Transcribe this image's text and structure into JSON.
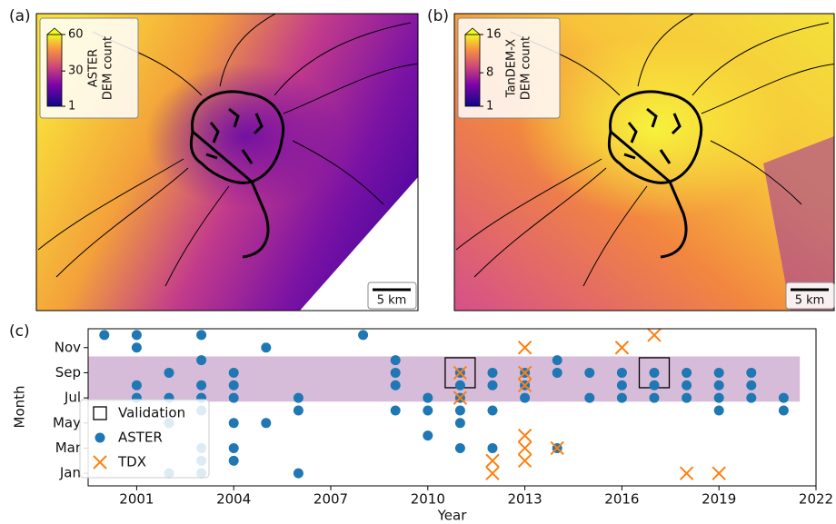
{
  "maps": [
    {
      "label": "(a)",
      "colorbar": {
        "title": [
          "ASTER",
          "DEM count"
        ],
        "lim": [
          1,
          60
        ],
        "ticks": [
          1,
          30,
          60
        ]
      },
      "scale_bar": "5 km"
    },
    {
      "label": "(b)",
      "colorbar": {
        "title": [
          "TanDEM-X",
          "DEM count"
        ],
        "lim": [
          1,
          16
        ],
        "ticks": [
          1,
          8,
          16
        ]
      },
      "scale_bar": "5 km"
    }
  ],
  "chart_data": {
    "type": "scatter",
    "label": "(c)",
    "xlabel": "Year",
    "ylabel": "Month",
    "xlim": [
      1999.5,
      2022
    ],
    "xticks": [
      2001,
      2004,
      2007,
      2010,
      2013,
      2016,
      2019,
      2022
    ],
    "ylim": [
      0,
      12.5
    ],
    "yticks": [
      {
        "value": 1,
        "label": "Jan"
      },
      {
        "value": 3,
        "label": "Mar"
      },
      {
        "value": 5,
        "label": "May"
      },
      {
        "value": 7,
        "label": "Jul"
      },
      {
        "value": 9,
        "label": "Sep"
      },
      {
        "value": 11,
        "label": "Nov"
      }
    ],
    "span": {
      "x": [
        1999.5,
        2021.5
      ],
      "y": [
        6.7,
        10.3
      ],
      "color": "#d7bcd9"
    },
    "legend": "lower left",
    "series": [
      {
        "name": "Validation",
        "marker": "square",
        "color": "#000000",
        "x": [
          2011,
          2017
        ],
        "values": [
          9,
          9
        ]
      },
      {
        "name": "ASTER",
        "marker": "circle",
        "color": "#1f77b4",
        "x": [
          2000,
          2001,
          2001,
          2001,
          2001,
          2002,
          2002,
          2002,
          2002,
          2003,
          2003,
          2003,
          2003,
          2003,
          2003,
          2003,
          2003,
          2004,
          2004,
          2004,
          2004,
          2004,
          2004,
          2005,
          2005,
          2006,
          2006,
          2006,
          2008,
          2009,
          2009,
          2009,
          2009,
          2010,
          2010,
          2010,
          2011,
          2011,
          2011,
          2011,
          2011,
          2011,
          2012,
          2012,
          2012,
          2012,
          2013,
          2013,
          2013,
          2014,
          2014,
          2014,
          2015,
          2015,
          2016,
          2016,
          2016,
          2017,
          2017,
          2017,
          2018,
          2018,
          2018,
          2019,
          2019,
          2019,
          2019,
          2020,
          2020,
          2020,
          2021,
          2021
        ],
        "values": [
          12,
          12,
          11,
          8,
          7,
          9,
          7,
          5,
          1,
          12,
          10,
          8,
          7,
          6,
          3,
          2,
          1,
          9,
          8,
          7,
          5,
          3,
          2,
          11,
          5,
          7,
          6,
          1,
          12,
          10,
          9,
          8,
          6,
          7,
          6,
          4,
          9,
          8,
          7,
          6,
          5,
          3,
          9,
          8,
          6,
          3,
          9,
          8,
          7,
          10,
          9,
          3,
          9,
          7,
          9,
          8,
          7,
          9,
          8,
          7,
          9,
          8,
          7,
          9,
          8,
          7,
          6,
          9,
          8,
          7,
          7,
          6
        ]
      },
      {
        "name": "TDX",
        "marker": "x",
        "color": "#ff7f0e",
        "x": [
          2011,
          2011,
          2012,
          2012,
          2013,
          2013,
          2013,
          2013,
          2013,
          2013,
          2014,
          2016,
          2017,
          2018,
          2019
        ],
        "values": [
          9,
          7,
          2,
          1,
          11,
          9,
          8,
          4,
          3,
          2,
          3,
          11,
          12,
          1,
          1
        ]
      }
    ]
  }
}
